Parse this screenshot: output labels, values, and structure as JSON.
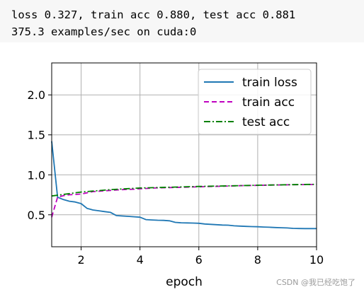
{
  "output": {
    "line1": "loss 0.327, train acc 0.880, test acc 0.881",
    "line2": "375.3 examples/sec on cuda:0"
  },
  "watermark": "CSDN @我已经吃饱了",
  "chart_data": {
    "type": "line",
    "title": "",
    "xlabel": "epoch",
    "ylabel": "",
    "xlim": [
      1,
      10
    ],
    "ylim": [
      0.1,
      2.4
    ],
    "xticks": [
      2,
      4,
      6,
      8,
      10
    ],
    "yticks": [
      0.5,
      1.0,
      1.5,
      2.0
    ],
    "xtick_labels": [
      "2",
      "4",
      "6",
      "8",
      "10"
    ],
    "ytick_labels": [
      "0.5",
      "1.0",
      "1.5",
      "2.0"
    ],
    "grid": true,
    "legend_position": "top-right",
    "series": [
      {
        "name": "train loss",
        "color": "#1f77b4",
        "dash": "solid",
        "x": [
          1.0,
          1.2,
          1.4,
          1.6,
          1.8,
          2.0,
          2.2,
          2.4,
          2.6,
          2.8,
          3.0,
          3.2,
          3.4,
          3.6,
          3.8,
          4.0,
          4.2,
          4.4,
          4.6,
          4.8,
          5.0,
          5.2,
          5.4,
          5.6,
          5.8,
          6.0,
          6.2,
          6.4,
          6.6,
          6.8,
          7.0,
          7.2,
          7.4,
          7.6,
          7.8,
          8.0,
          8.2,
          8.4,
          8.6,
          8.8,
          9.0,
          9.2,
          9.4,
          9.6,
          9.8,
          10.0
        ],
        "values": [
          1.42,
          0.72,
          0.69,
          0.67,
          0.66,
          0.64,
          0.58,
          0.56,
          0.55,
          0.54,
          0.53,
          0.49,
          0.485,
          0.48,
          0.475,
          0.47,
          0.44,
          0.435,
          0.432,
          0.43,
          0.425,
          0.405,
          0.4,
          0.398,
          0.396,
          0.394,
          0.385,
          0.38,
          0.376,
          0.372,
          0.37,
          0.362,
          0.358,
          0.355,
          0.352,
          0.35,
          0.347,
          0.344,
          0.341,
          0.338,
          0.335,
          0.33,
          0.328,
          0.327,
          0.327,
          0.327
        ]
      },
      {
        "name": "train acc",
        "color": "#bf00bf",
        "dash": "dashed",
        "x": [
          1.0,
          1.2,
          1.4,
          1.6,
          1.8,
          2.0,
          2.4,
          2.8,
          3.0,
          3.4,
          3.8,
          4.0,
          4.5,
          5.0,
          5.5,
          6.0,
          6.5,
          7.0,
          7.5,
          8.0,
          8.5,
          9.0,
          9.5,
          10.0
        ],
        "values": [
          0.47,
          0.72,
          0.74,
          0.75,
          0.755,
          0.76,
          0.79,
          0.8,
          0.805,
          0.815,
          0.82,
          0.825,
          0.835,
          0.84,
          0.845,
          0.85,
          0.855,
          0.86,
          0.865,
          0.868,
          0.872,
          0.875,
          0.878,
          0.88
        ]
      },
      {
        "name": "test acc",
        "color": "#008000",
        "dash": "dashdot",
        "x": [
          1,
          2,
          3,
          4,
          5,
          6,
          7,
          8,
          9,
          10
        ],
        "values": [
          0.735,
          0.785,
          0.815,
          0.835,
          0.845,
          0.855,
          0.862,
          0.87,
          0.876,
          0.881
        ]
      }
    ]
  }
}
